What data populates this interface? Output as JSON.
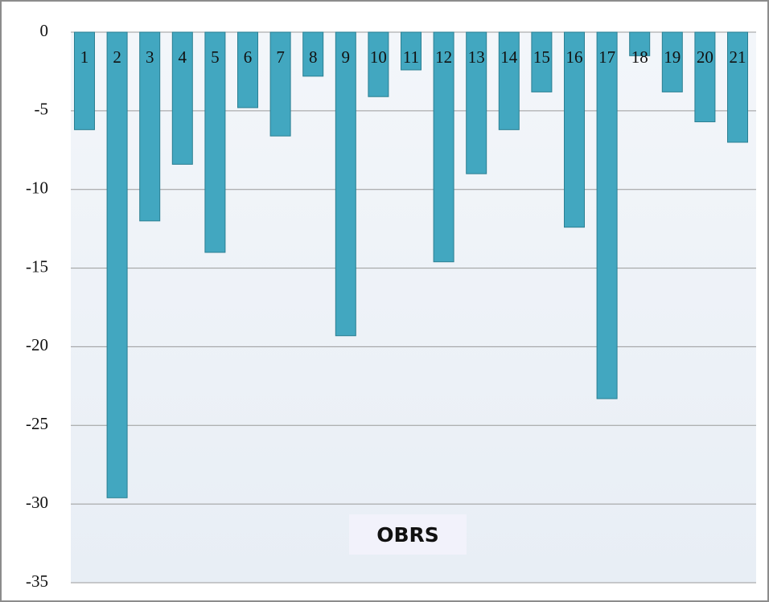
{
  "chart_data": {
    "type": "bar",
    "x_label": "OBRS",
    "categories": [
      "1",
      "2",
      "3",
      "4",
      "5",
      "6",
      "7",
      "8",
      "9",
      "10",
      "11",
      "12",
      "13",
      "14",
      "15",
      "16",
      "17",
      "18",
      "19",
      "20",
      "21"
    ],
    "values": [
      -6.2,
      -29.6,
      -12.0,
      -8.4,
      -14.0,
      -4.8,
      -6.6,
      -2.8,
      -19.3,
      -4.1,
      -2.4,
      -14.6,
      -9.0,
      -6.2,
      -3.8,
      -12.4,
      -23.3,
      -1.5,
      -3.8,
      -5.7,
      -7.0
    ],
    "color": "#42a7c0",
    "ylim": [
      -35,
      0
    ],
    "yticks": [
      0,
      -5,
      -10,
      -15,
      -20,
      -25,
      -30,
      -35
    ],
    "grid": true
  }
}
